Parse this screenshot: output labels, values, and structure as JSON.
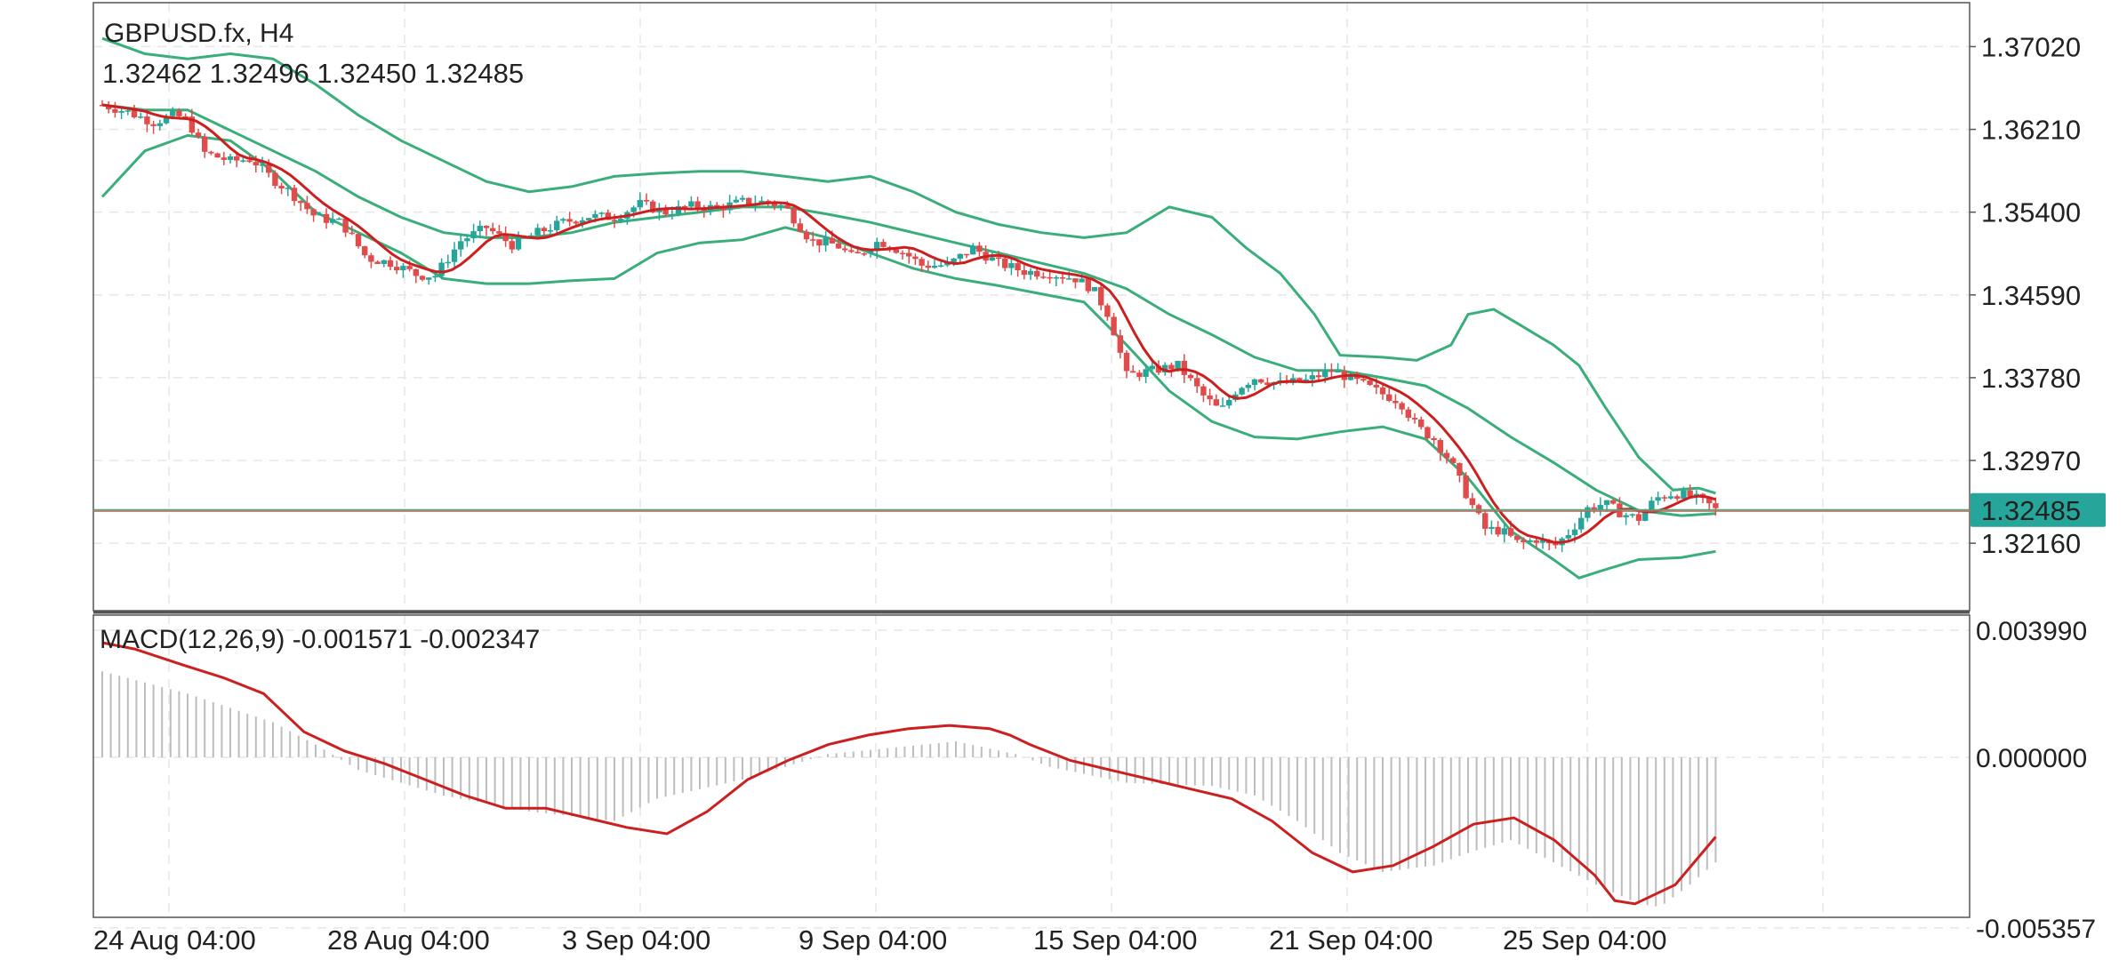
{
  "header": {
    "symbol_timeframe": "GBPUSD.fx, H4",
    "ohlc": "1.32462 1.32496 1.32450 1.32485"
  },
  "macd_header": "MACD(12,26,9) -0.001571 -0.002347",
  "current_price_label": "1.32485",
  "colors": {
    "bull": "#26a69a",
    "bear": "#e04b4b",
    "band": "#3aae7a",
    "ma": "#cc1f1f",
    "macd_line": "#cc1f1f",
    "histogram": "#bdbdbd",
    "price_tag_bg": "#26a69a",
    "grid": "#e6e6e6"
  },
  "chart_data": [
    {
      "type": "candlestick",
      "title": "GBPUSD.fx, H4",
      "grid": true,
      "y_ticks": [
        "1.37020",
        "1.36210",
        "1.35400",
        "1.34590",
        "1.33780",
        "1.32970",
        "1.32160"
      ],
      "ylim": [
        1.315,
        1.3745
      ],
      "x_ticks": [
        "24 Aug 04:00",
        "28 Aug 04:00",
        "3 Sep 04:00",
        "9 Sep 04:00",
        "15 Sep 04:00",
        "21 Sep 04:00",
        "25 Sep 04:00"
      ],
      "last_price": 1.32485,
      "close_path": [
        [
          0,
          1.3645
        ],
        [
          6,
          1.3638
        ],
        [
          12,
          1.3628
        ],
        [
          17,
          1.3635
        ],
        [
          20,
          1.363
        ],
        [
          24,
          1.3598
        ],
        [
          30,
          1.359
        ],
        [
          35,
          1.3592
        ],
        [
          40,
          1.3572
        ],
        [
          44,
          1.356
        ],
        [
          50,
          1.3535
        ],
        [
          56,
          1.353
        ],
        [
          62,
          1.3495
        ],
        [
          68,
          1.349
        ],
        [
          74,
          1.3478
        ],
        [
          78,
          1.3478
        ],
        [
          84,
          1.3512
        ],
        [
          90,
          1.3525
        ],
        [
          96,
          1.3508
        ],
        [
          102,
          1.352
        ],
        [
          108,
          1.353
        ],
        [
          114,
          1.3536
        ],
        [
          120,
          1.3535
        ],
        [
          126,
          1.3548
        ],
        [
          132,
          1.354
        ],
        [
          138,
          1.3546
        ],
        [
          144,
          1.3544
        ],
        [
          150,
          1.355
        ],
        [
          156,
          1.355
        ],
        [
          160,
          1.3545
        ],
        [
          166,
          1.3512
        ],
        [
          172,
          1.3508
        ],
        [
          176,
          1.3495
        ],
        [
          182,
          1.3512
        ],
        [
          188,
          1.35
        ],
        [
          192,
          1.3488
        ],
        [
          198,
          1.3488
        ],
        [
          204,
          1.3505
        ],
        [
          210,
          1.349
        ],
        [
          216,
          1.3482
        ],
        [
          222,
          1.348
        ],
        [
          228,
          1.3475
        ],
        [
          232,
          1.3465
        ],
        [
          236,
          1.3438
        ],
        [
          240,
          1.338
        ],
        [
          246,
          1.3385
        ],
        [
          252,
          1.339
        ],
        [
          258,
          1.336
        ],
        [
          262,
          1.3345
        ],
        [
          266,
          1.3368
        ],
        [
          270,
          1.3378
        ],
        [
          276,
          1.3372
        ],
        [
          282,
          1.3375
        ],
        [
          288,
          1.3385
        ],
        [
          292,
          1.3378
        ],
        [
          296,
          1.337
        ],
        [
          300,
          1.3362
        ],
        [
          304,
          1.3355
        ],
        [
          308,
          1.333
        ],
        [
          312,
          1.3318
        ],
        [
          316,
          1.3295
        ],
        [
          320,
          1.326
        ],
        [
          324,
          1.323
        ],
        [
          328,
          1.3228
        ],
        [
          332,
          1.3215
        ],
        [
          336,
          1.322
        ],
        [
          340,
          1.3212
        ],
        [
          344,
          1.3228
        ],
        [
          348,
          1.325
        ],
        [
          352,
          1.3255
        ],
        [
          356,
          1.3245
        ],
        [
          360,
          1.324
        ],
        [
          364,
          1.326
        ],
        [
          368,
          1.3265
        ],
        [
          372,
          1.3262
        ],
        [
          376,
          1.3255
        ],
        [
          378,
          1.32485
        ]
      ],
      "upper_band_path": [
        [
          0,
          1.371
        ],
        [
          10,
          1.3695
        ],
        [
          20,
          1.369
        ],
        [
          30,
          1.3695
        ],
        [
          40,
          1.369
        ],
        [
          50,
          1.3665
        ],
        [
          60,
          1.3635
        ],
        [
          70,
          1.361
        ],
        [
          80,
          1.359
        ],
        [
          90,
          1.357
        ],
        [
          100,
          1.356
        ],
        [
          110,
          1.3565
        ],
        [
          120,
          1.3575
        ],
        [
          130,
          1.3578
        ],
        [
          140,
          1.358
        ],
        [
          150,
          1.358
        ],
        [
          160,
          1.3575
        ],
        [
          170,
          1.357
        ],
        [
          180,
          1.3575
        ],
        [
          190,
          1.356
        ],
        [
          200,
          1.354
        ],
        [
          210,
          1.3528
        ],
        [
          220,
          1.352
        ],
        [
          230,
          1.3515
        ],
        [
          240,
          1.352
        ],
        [
          250,
          1.3545
        ],
        [
          260,
          1.3535
        ],
        [
          268,
          1.3505
        ],
        [
          276,
          1.348
        ],
        [
          284,
          1.344
        ],
        [
          290,
          1.34
        ],
        [
          300,
          1.3398
        ],
        [
          308,
          1.3395
        ],
        [
          316,
          1.341
        ],
        [
          320,
          1.344
        ],
        [
          326,
          1.3445
        ],
        [
          332,
          1.343
        ],
        [
          340,
          1.341
        ],
        [
          346,
          1.339
        ],
        [
          352,
          1.335
        ],
        [
          360,
          1.33
        ],
        [
          368,
          1.3268
        ],
        [
          374,
          1.327
        ],
        [
          378,
          1.3265
        ]
      ],
      "middle_band_path": [
        [
          0,
          1.3645
        ],
        [
          10,
          1.364
        ],
        [
          20,
          1.364
        ],
        [
          30,
          1.362
        ],
        [
          40,
          1.36
        ],
        [
          50,
          1.358
        ],
        [
          60,
          1.3555
        ],
        [
          70,
          1.3535
        ],
        [
          80,
          1.352
        ],
        [
          90,
          1.3515
        ],
        [
          100,
          1.3515
        ],
        [
          110,
          1.352
        ],
        [
          120,
          1.353
        ],
        [
          130,
          1.3535
        ],
        [
          140,
          1.354
        ],
        [
          150,
          1.3545
        ],
        [
          160,
          1.3545
        ],
        [
          170,
          1.3538
        ],
        [
          180,
          1.353
        ],
        [
          190,
          1.352
        ],
        [
          200,
          1.351
        ],
        [
          210,
          1.35
        ],
        [
          220,
          1.349
        ],
        [
          230,
          1.348
        ],
        [
          240,
          1.3465
        ],
        [
          250,
          1.344
        ],
        [
          260,
          1.342
        ],
        [
          270,
          1.3398
        ],
        [
          280,
          1.3385
        ],
        [
          290,
          1.3385
        ],
        [
          300,
          1.3378
        ],
        [
          310,
          1.337
        ],
        [
          320,
          1.3348
        ],
        [
          330,
          1.332
        ],
        [
          340,
          1.3295
        ],
        [
          350,
          1.3268
        ],
        [
          360,
          1.3248
        ],
        [
          370,
          1.3243
        ],
        [
          378,
          1.3245
        ]
      ],
      "lower_band_path": [
        [
          0,
          1.3555
        ],
        [
          10,
          1.36
        ],
        [
          20,
          1.3615
        ],
        [
          30,
          1.361
        ],
        [
          40,
          1.358
        ],
        [
          50,
          1.354
        ],
        [
          60,
          1.352
        ],
        [
          70,
          1.35
        ],
        [
          80,
          1.3475
        ],
        [
          90,
          1.347
        ],
        [
          100,
          1.347
        ],
        [
          110,
          1.3473
        ],
        [
          120,
          1.3475
        ],
        [
          130,
          1.35
        ],
        [
          140,
          1.351
        ],
        [
          150,
          1.3513
        ],
        [
          160,
          1.3525
        ],
        [
          170,
          1.3515
        ],
        [
          180,
          1.35
        ],
        [
          190,
          1.3485
        ],
        [
          200,
          1.3475
        ],
        [
          210,
          1.3468
        ],
        [
          220,
          1.346
        ],
        [
          230,
          1.3452
        ],
        [
          240,
          1.341
        ],
        [
          250,
          1.3365
        ],
        [
          260,
          1.3335
        ],
        [
          270,
          1.332
        ],
        [
          280,
          1.3318
        ],
        [
          290,
          1.3325
        ],
        [
          300,
          1.333
        ],
        [
          310,
          1.3318
        ],
        [
          320,
          1.328
        ],
        [
          330,
          1.3228
        ],
        [
          340,
          1.32
        ],
        [
          346,
          1.3182
        ],
        [
          352,
          1.319
        ],
        [
          360,
          1.32
        ],
        [
          370,
          1.3202
        ],
        [
          378,
          1.3208
        ]
      ]
    },
    {
      "type": "macd",
      "title": "MACD(12,26,9) -0.001571 -0.002347",
      "grid": true,
      "y_ticks": [
        "0.003990",
        "0.000000",
        "-0.005357"
      ],
      "ylim": [
        -0.005357,
        0.00399
      ],
      "histogram_path": [
        [
          0,
          0.0027
        ],
        [
          20,
          0.002
        ],
        [
          40,
          0.0011
        ],
        [
          50,
          0.0004
        ],
        [
          60,
          -0.0004
        ],
        [
          80,
          -0.0012
        ],
        [
          100,
          -0.0017
        ],
        [
          120,
          -0.002
        ],
        [
          130,
          -0.0013
        ],
        [
          150,
          -0.0007
        ],
        [
          160,
          -0.0003
        ],
        [
          170,
          0.0001
        ],
        [
          185,
          0.0003
        ],
        [
          200,
          0.0005
        ],
        [
          214,
          0.0001
        ],
        [
          222,
          -0.0003
        ],
        [
          240,
          -0.0008
        ],
        [
          260,
          -0.0009
        ],
        [
          270,
          -0.0012
        ],
        [
          280,
          -0.002
        ],
        [
          290,
          -0.003
        ],
        [
          300,
          -0.0036
        ],
        [
          312,
          -0.0034
        ],
        [
          320,
          -0.003
        ],
        [
          330,
          -0.0026
        ],
        [
          340,
          -0.0033
        ],
        [
          350,
          -0.004
        ],
        [
          360,
          -0.0046
        ],
        [
          365,
          -0.0047
        ],
        [
          372,
          -0.004
        ],
        [
          378,
          -0.0033
        ]
      ],
      "macd_line_path": [
        [
          0,
          0.0036
        ],
        [
          8,
          0.0034
        ],
        [
          20,
          0.0029
        ],
        [
          30,
          0.0025
        ],
        [
          40,
          0.002
        ],
        [
          50,
          0.0008
        ],
        [
          60,
          0.0002
        ],
        [
          70,
          -0.0002
        ],
        [
          80,
          -0.0007
        ],
        [
          90,
          -0.0012
        ],
        [
          100,
          -0.0016
        ],
        [
          110,
          -0.0016
        ],
        [
          120,
          -0.0019
        ],
        [
          130,
          -0.0022
        ],
        [
          140,
          -0.0024
        ],
        [
          150,
          -0.0017
        ],
        [
          160,
          -0.0007
        ],
        [
          170,
          -0.0001
        ],
        [
          180,
          0.0004
        ],
        [
          190,
          0.0007
        ],
        [
          200,
          0.0009
        ],
        [
          210,
          0.001
        ],
        [
          220,
          0.0009
        ],
        [
          225,
          0.0007
        ],
        [
          230,
          0.0004
        ],
        [
          240,
          -0.0001
        ],
        [
          250,
          -0.0004
        ],
        [
          260,
          -0.0007
        ],
        [
          270,
          -0.001
        ],
        [
          280,
          -0.0013
        ],
        [
          290,
          -0.002
        ],
        [
          300,
          -0.003
        ],
        [
          310,
          -0.0036
        ],
        [
          320,
          -0.0034
        ],
        [
          330,
          -0.0028
        ],
        [
          340,
          -0.0021
        ],
        [
          350,
          -0.0019
        ],
        [
          360,
          -0.0026
        ],
        [
          370,
          -0.0037
        ],
        [
          375,
          -0.0045
        ],
        [
          380,
          -0.0046
        ],
        [
          390,
          -0.004
        ],
        [
          400,
          -0.0025
        ]
      ]
    }
  ]
}
